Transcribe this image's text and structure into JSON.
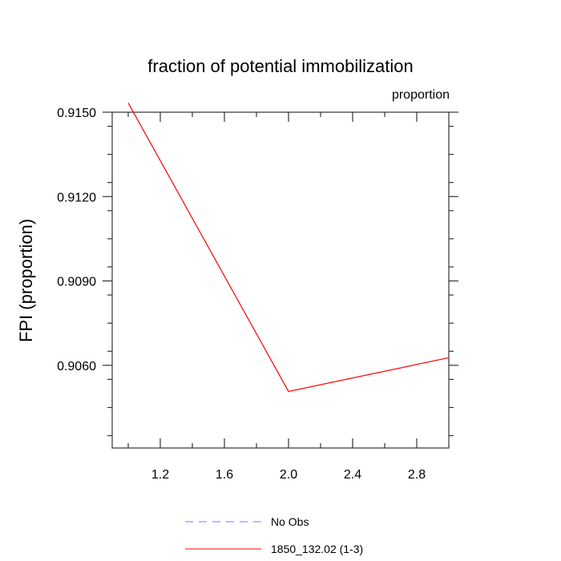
{
  "chart_data": {
    "type": "line",
    "title": "fraction of potential immobilization",
    "units_label": "proportion",
    "xlabel": "",
    "ylabel": "FPI  (proportion)",
    "xlim": [
      0.9,
      3.0
    ],
    "ylim": [
      0.90306,
      0.915
    ],
    "x_ticks_major": [
      1.2,
      1.6,
      2.0,
      2.4,
      2.8
    ],
    "x_tick_labels": [
      "1.2",
      "1.6",
      "2.0",
      "2.4",
      "2.8"
    ],
    "x_ticks_minor": [
      1.0,
      1.4,
      1.8,
      2.2,
      2.6
    ],
    "y_ticks_major": [
      0.906,
      0.909,
      0.912,
      0.915
    ],
    "y_tick_labels": [
      "0.9060",
      "0.9090",
      "0.9120",
      "0.9150"
    ],
    "y_ticks_minor": [
      0.9035,
      0.9045,
      0.9055,
      0.9065,
      0.9075,
      0.9085,
      0.9095,
      0.9105,
      0.9115,
      0.9125,
      0.9135,
      0.9145,
      0.9155
    ],
    "grid": false,
    "series": [
      {
        "name": "1850_132.02 (1-3)",
        "x": [
          1.0,
          2.0,
          3.0
        ],
        "values": [
          0.91533,
          0.90507,
          0.90627
        ],
        "color": "#ff0000",
        "dash": "solid"
      }
    ],
    "legend": {
      "placement": "bottom-center",
      "entries": [
        {
          "label": "No Obs",
          "color": "#7777ff",
          "dash": "dashed"
        },
        {
          "label": "1850_132.02 (1-3)",
          "color": "#ff0000",
          "dash": "solid"
        }
      ]
    }
  }
}
